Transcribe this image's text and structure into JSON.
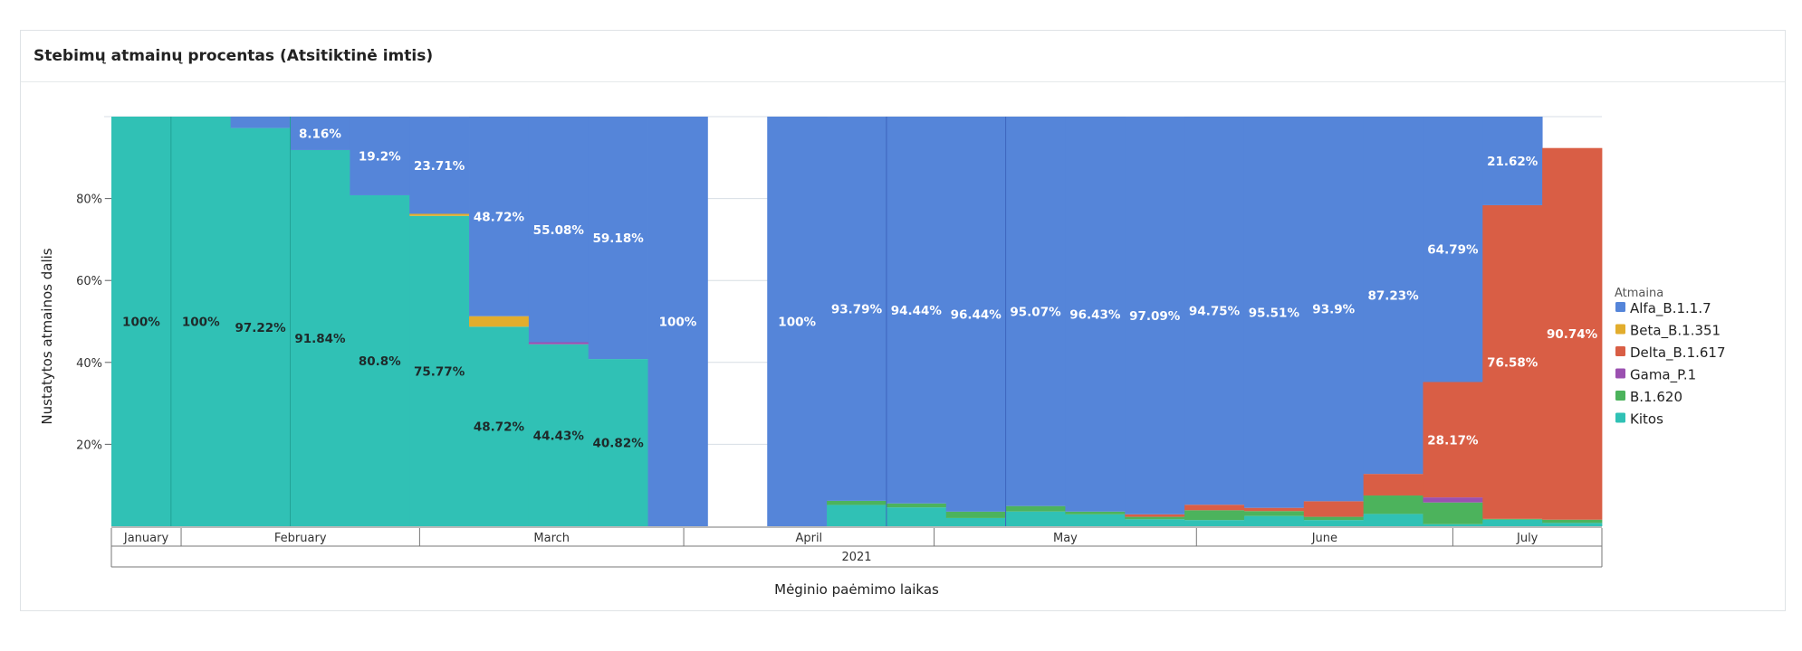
{
  "panel": {
    "title": "Stebimų atmainų procentas (Atsitiktinė imtis)"
  },
  "chart_data": {
    "type": "bar",
    "title": "Stebimų atmainų procentas (Atsitiktinė imtis)",
    "xlabel": "Mėginio paėmimo laikas",
    "ylabel": "Nustatytos atmainos dalis",
    "ylim": [
      0,
      100
    ],
    "y_ticks": [
      "20%",
      "40%",
      "60%",
      "80%"
    ],
    "x_year": "2021",
    "x_months": [
      "January",
      "February",
      "March",
      "April",
      "May",
      "June",
      "July"
    ],
    "stacked": true,
    "normalized": true,
    "grid": true,
    "legend": {
      "title": "Atmaina",
      "position": "right"
    },
    "series": [
      {
        "name": "Alfa_B.1.1.7",
        "color": "#5585d9"
      },
      {
        "name": "Beta_B.1.351",
        "color": "#e2ad2d"
      },
      {
        "name": "Delta_B.1.617",
        "color": "#d95e45"
      },
      {
        "name": "Gama_P.1",
        "color": "#9b50b0"
      },
      {
        "name": "B.1.620",
        "color": "#4cb35c"
      },
      {
        "name": "Kitos",
        "color": "#30c1b5"
      }
    ],
    "weeks": [
      {
        "bars": {
          "Kitos": 100
        },
        "labels": {
          "Kitos": "100%"
        }
      },
      {
        "bars": {
          "Kitos": 100
        },
        "labels": {
          "Kitos": "100%"
        }
      },
      {
        "bars": {
          "Kitos": 97.22,
          "Alfa_B.1.1.7": 2.78
        },
        "labels": {
          "Kitos": "97.22%"
        }
      },
      {
        "bars": {
          "Kitos": 91.84,
          "Alfa_B.1.1.7": 8.16
        },
        "labels": {
          "Kitos": "91.84%",
          "Alfa_B.1.1.7": "8.16%"
        }
      },
      {
        "bars": {
          "Kitos": 80.8,
          "Alfa_B.1.1.7": 19.2
        },
        "labels": {
          "Kitos": "80.8%",
          "Alfa_B.1.1.7": "19.2%"
        }
      },
      {
        "bars": {
          "Kitos": 75.77,
          "Beta_B.1.351": 0.5,
          "Alfa_B.1.1.7": 23.71
        },
        "labels": {
          "Kitos": "75.77%",
          "Alfa_B.1.1.7": "23.71%"
        }
      },
      {
        "bars": {
          "Kitos": 48.72,
          "Beta_B.1.351": 2.56,
          "Alfa_B.1.1.7": 48.72
        },
        "labels": {
          "Kitos": "48.72%",
          "Alfa_B.1.1.7": "48.72%"
        }
      },
      {
        "bars": {
          "Kitos": 44.43,
          "Gama_P.1": 0.49,
          "Alfa_B.1.1.7": 55.08
        },
        "labels": {
          "Kitos": "44.43%",
          "Alfa_B.1.1.7": "55.08%"
        }
      },
      {
        "bars": {
          "Kitos": 40.82,
          "Alfa_B.1.1.7": 59.18
        },
        "labels": {
          "Kitos": "40.82%",
          "Alfa_B.1.1.7": "59.18%"
        }
      },
      {
        "bars": {
          "Alfa_B.1.1.7": 100
        },
        "labels": {
          "Alfa_B.1.1.7": "100%"
        }
      },
      {
        "bars": {},
        "labels": {}
      },
      {
        "bars": {
          "Alfa_B.1.1.7": 100
        },
        "labels": {
          "Alfa_B.1.1.7": "100%"
        }
      },
      {
        "bars": {
          "Kitos": 5.2,
          "B.1.620": 1.0,
          "Alfa_B.1.1.7": 93.79
        },
        "labels": {
          "Alfa_B.1.1.7": "93.79%"
        }
      },
      {
        "bars": {
          "Kitos": 4.6,
          "B.1.620": 0.96,
          "Alfa_B.1.1.7": 94.44
        },
        "labels": {
          "Alfa_B.1.1.7": "94.44%"
        }
      },
      {
        "bars": {
          "Kitos": 2.0,
          "B.1.620": 1.56,
          "Alfa_B.1.1.7": 96.44
        },
        "labels": {
          "Alfa_B.1.1.7": "96.44%"
        }
      },
      {
        "bars": {
          "Kitos": 3.6,
          "B.1.620": 1.33,
          "Alfa_B.1.1.7": 95.07
        },
        "labels": {
          "Alfa_B.1.1.7": "95.07%"
        }
      },
      {
        "bars": {
          "Kitos": 2.9,
          "B.1.620": 0.67,
          "Alfa_B.1.1.7": 96.43
        },
        "labels": {
          "Alfa_B.1.1.7": "96.43%"
        }
      },
      {
        "bars": {
          "Kitos": 1.7,
          "B.1.620": 0.6,
          "Delta_B.1.617": 0.6,
          "Alfa_B.1.1.7": 97.09
        },
        "labels": {
          "Alfa_B.1.1.7": "97.09%"
        }
      },
      {
        "bars": {
          "Kitos": 1.5,
          "B.1.620": 2.4,
          "Delta_B.1.617": 1.35,
          "Alfa_B.1.1.7": 94.75
        },
        "labels": {
          "Alfa_B.1.1.7": "94.75%"
        }
      },
      {
        "bars": {
          "Kitos": 2.5,
          "B.1.620": 1.2,
          "Delta_B.1.617": 0.79,
          "Alfa_B.1.1.7": 95.51
        },
        "labels": {
          "Alfa_B.1.1.7": "95.51%"
        }
      },
      {
        "bars": {
          "Kitos": 1.5,
          "B.1.620": 0.8,
          "Delta_B.1.617": 3.8,
          "Alfa_B.1.1.7": 93.9
        },
        "labels": {
          "Alfa_B.1.1.7": "93.9%"
        }
      },
      {
        "bars": {
          "Kitos": 3.0,
          "B.1.620": 4.5,
          "Delta_B.1.617": 5.27,
          "Alfa_B.1.1.7": 87.23
        },
        "labels": {
          "Alfa_B.1.1.7": "87.23%"
        }
      },
      {
        "bars": {
          "Kitos": 0.5,
          "B.1.620": 5.3,
          "Gama_P.1": 1.24,
          "Delta_B.1.617": 28.17,
          "Alfa_B.1.1.7": 64.79
        },
        "labels": {
          "Delta_B.1.617": "28.17%",
          "Alfa_B.1.1.7": "64.79%"
        }
      },
      {
        "bars": {
          "Kitos": 1.6,
          "B.1.620": 0.2,
          "Delta_B.1.617": 76.58,
          "Alfa_B.1.1.7": 21.62
        },
        "labels": {
          "Delta_B.1.617": "76.58%",
          "Alfa_B.1.1.7": "21.62%"
        }
      },
      {
        "bars": {
          "Kitos": 0.8,
          "B.1.620": 0.8,
          "Delta_B.1.617": 90.74
        },
        "labels": {
          "Delta_B.1.617": "90.74%"
        }
      }
    ]
  }
}
